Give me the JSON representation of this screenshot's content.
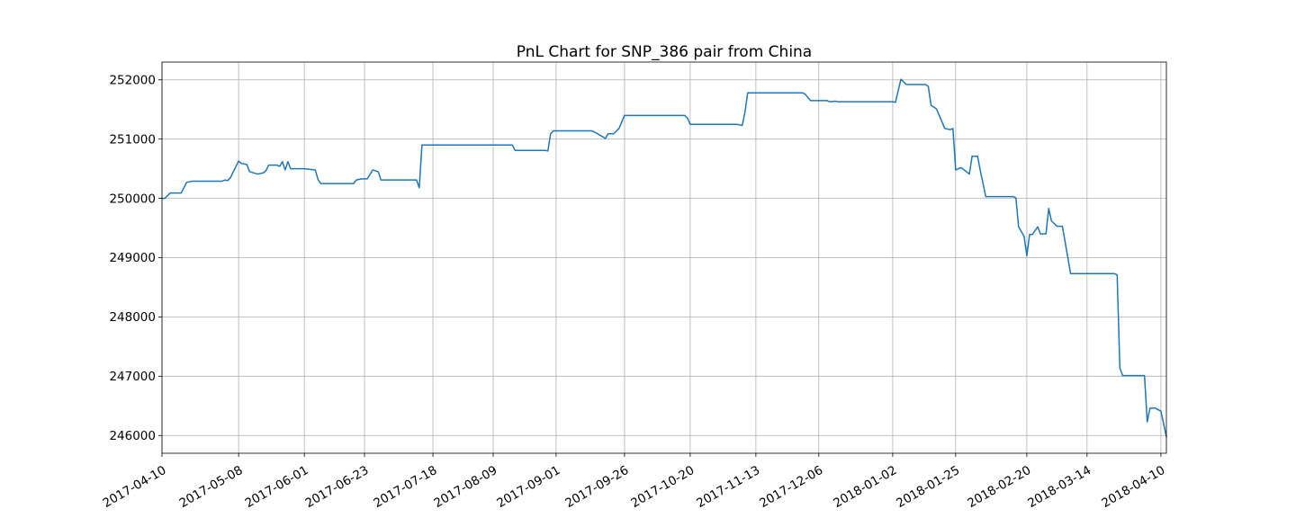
{
  "chart_data": {
    "type": "line",
    "title": "PnL Chart for SNP_386 pair from China",
    "xlabel": "",
    "ylabel": "",
    "grid": true,
    "x_ticks": [
      "2017-04-10",
      "2017-05-08",
      "2017-06-01",
      "2017-06-23",
      "2017-07-18",
      "2017-08-09",
      "2017-09-01",
      "2017-09-26",
      "2017-10-20",
      "2017-11-13",
      "2017-12-06",
      "2018-01-02",
      "2018-01-25",
      "2018-02-20",
      "2018-03-14",
      "2018-04-10"
    ],
    "y_ticks": [
      246000,
      247000,
      248000,
      249000,
      250000,
      251000,
      252000
    ],
    "ylim": [
      245700,
      252300
    ],
    "xlim": [
      "2017-04-10",
      "2018-04-12"
    ],
    "series": [
      {
        "color": "#1f77b4",
        "points": [
          [
            "2017-04-10",
            250000
          ],
          [
            "2017-04-11",
            250000
          ],
          [
            "2017-04-13",
            250090
          ],
          [
            "2017-04-17",
            250090
          ],
          [
            "2017-04-19",
            250270
          ],
          [
            "2017-04-21",
            250290
          ],
          [
            "2017-04-24",
            250290
          ],
          [
            "2017-05-02",
            250290
          ],
          [
            "2017-05-03",
            250310
          ],
          [
            "2017-05-04",
            250300
          ],
          [
            "2017-05-05",
            250350
          ],
          [
            "2017-05-08",
            250630
          ],
          [
            "2017-05-09",
            250590
          ],
          [
            "2017-05-11",
            250570
          ],
          [
            "2017-05-12",
            250450
          ],
          [
            "2017-05-15",
            250410
          ],
          [
            "2017-05-17",
            250430
          ],
          [
            "2017-05-18",
            250470
          ],
          [
            "2017-05-19",
            250560
          ],
          [
            "2017-05-22",
            250560
          ],
          [
            "2017-05-23",
            250540
          ],
          [
            "2017-05-24",
            250620
          ],
          [
            "2017-05-25",
            250480
          ],
          [
            "2017-05-26",
            250620
          ],
          [
            "2017-05-27",
            250500
          ],
          [
            "2017-05-31",
            250500
          ],
          [
            "2017-06-01",
            250500
          ],
          [
            "2017-06-05",
            250480
          ],
          [
            "2017-06-06",
            250320
          ],
          [
            "2017-06-07",
            250250
          ],
          [
            "2017-06-14",
            250250
          ],
          [
            "2017-06-19",
            250250
          ],
          [
            "2017-06-20",
            250310
          ],
          [
            "2017-06-22",
            250330
          ],
          [
            "2017-06-24",
            250330
          ],
          [
            "2017-06-26",
            250480
          ],
          [
            "2017-06-28",
            250450
          ],
          [
            "2017-06-29",
            250310
          ],
          [
            "2017-07-06",
            250310
          ],
          [
            "2017-07-12",
            250310
          ],
          [
            "2017-07-13",
            250180
          ],
          [
            "2017-07-14",
            250900
          ],
          [
            "2017-07-20",
            250900
          ],
          [
            "2017-08-01",
            250900
          ],
          [
            "2017-08-16",
            250900
          ],
          [
            "2017-08-17",
            250810
          ],
          [
            "2017-08-24",
            250810
          ],
          [
            "2017-08-28",
            250810
          ],
          [
            "2017-08-29",
            250800
          ],
          [
            "2017-08-30",
            251090
          ],
          [
            "2017-08-31",
            251140
          ],
          [
            "2017-09-07",
            251140
          ],
          [
            "2017-09-14",
            251140
          ],
          [
            "2017-09-15",
            251120
          ],
          [
            "2017-09-18",
            251040
          ],
          [
            "2017-09-19",
            251010
          ],
          [
            "2017-09-20",
            251090
          ],
          [
            "2017-09-22",
            251090
          ],
          [
            "2017-09-24",
            251180
          ],
          [
            "2017-09-26",
            251400
          ],
          [
            "2017-10-10",
            251400
          ],
          [
            "2017-10-18",
            251400
          ],
          [
            "2017-10-19",
            251350
          ],
          [
            "2017-10-20",
            251250
          ],
          [
            "2017-11-06",
            251250
          ],
          [
            "2017-11-08",
            251230
          ],
          [
            "2017-11-09",
            251450
          ],
          [
            "2017-11-10",
            251780
          ],
          [
            "2017-11-20",
            251780
          ],
          [
            "2017-11-30",
            251780
          ],
          [
            "2017-12-01",
            251760
          ],
          [
            "2017-12-02",
            251700
          ],
          [
            "2017-12-03",
            251650
          ],
          [
            "2017-12-05",
            251650
          ],
          [
            "2017-12-09",
            251650
          ],
          [
            "2017-12-10",
            251630
          ],
          [
            "2017-12-12",
            251640
          ],
          [
            "2017-12-13",
            251630
          ],
          [
            "2018-01-02",
            251630
          ],
          [
            "2018-01-03",
            251620
          ],
          [
            "2018-01-05",
            252010
          ],
          [
            "2018-01-07",
            251920
          ],
          [
            "2018-01-14",
            251920
          ],
          [
            "2018-01-15",
            251890
          ],
          [
            "2018-01-16",
            251570
          ],
          [
            "2018-01-18",
            251510
          ],
          [
            "2018-01-19",
            251400
          ],
          [
            "2018-01-21",
            251180
          ],
          [
            "2018-01-23",
            251160
          ],
          [
            "2018-01-24",
            251180
          ],
          [
            "2018-01-25",
            250480
          ],
          [
            "2018-01-27",
            250520
          ],
          [
            "2018-01-30",
            250410
          ],
          [
            "2018-01-31",
            250710
          ],
          [
            "2018-02-02",
            250710
          ],
          [
            "2018-02-03",
            250470
          ],
          [
            "2018-02-05",
            250030
          ],
          [
            "2018-02-12",
            250030
          ],
          [
            "2018-02-15",
            250030
          ],
          [
            "2018-02-16",
            250010
          ],
          [
            "2018-02-17",
            249520
          ],
          [
            "2018-02-19",
            249360
          ],
          [
            "2018-02-20",
            249030
          ],
          [
            "2018-02-21",
            249390
          ],
          [
            "2018-02-22",
            249390
          ],
          [
            "2018-02-24",
            249520
          ],
          [
            "2018-02-25",
            249400
          ],
          [
            "2018-02-27",
            249400
          ],
          [
            "2018-02-28",
            249830
          ],
          [
            "2018-03-01",
            249620
          ],
          [
            "2018-03-03",
            249530
          ],
          [
            "2018-03-05",
            249530
          ],
          [
            "2018-03-08",
            248730
          ],
          [
            "2018-03-14",
            248730
          ],
          [
            "2018-03-24",
            248730
          ],
          [
            "2018-03-25",
            248710
          ],
          [
            "2018-03-26",
            247140
          ],
          [
            "2018-03-27",
            247010
          ],
          [
            "2018-04-02",
            247010
          ],
          [
            "2018-04-04",
            247010
          ],
          [
            "2018-04-05",
            246230
          ],
          [
            "2018-04-06",
            246460
          ],
          [
            "2018-04-08",
            246460
          ],
          [
            "2018-04-10",
            246410
          ],
          [
            "2018-04-12",
            245980
          ]
        ]
      }
    ]
  }
}
